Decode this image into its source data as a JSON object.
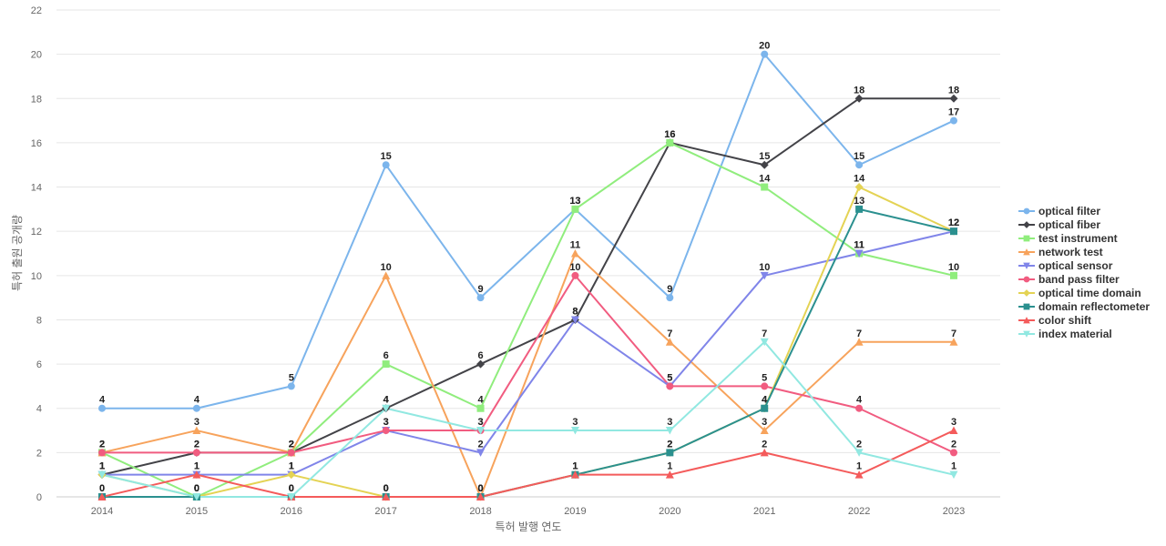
{
  "chart_data": {
    "type": "line",
    "title": "",
    "xlabel": "특허 발행 연도",
    "ylabel": "특허 출원 공개량",
    "x": [
      "2014",
      "2015",
      "2016",
      "2017",
      "2018",
      "2019",
      "2020",
      "2021",
      "2022",
      "2023"
    ],
    "ylim": [
      0,
      22
    ],
    "yticks": [
      0,
      2,
      4,
      6,
      8,
      10,
      12,
      14,
      16,
      18,
      20,
      22
    ],
    "grid": true,
    "legend_position": "right",
    "series": [
      {
        "name": "optical filter",
        "color": "#7cb5ec",
        "marker": "circle",
        "values": [
          4,
          4,
          5,
          15,
          9,
          13,
          9,
          20,
          15,
          17
        ]
      },
      {
        "name": "optical fiber",
        "color": "#434348",
        "marker": "diamond",
        "values": [
          1,
          2,
          2,
          4,
          6,
          8,
          16,
          15,
          18,
          18
        ]
      },
      {
        "name": "test instrument",
        "color": "#90ed7d",
        "marker": "square",
        "values": [
          2,
          0,
          2,
          6,
          4,
          13,
          16,
          14,
          11,
          10
        ]
      },
      {
        "name": "network test",
        "color": "#f7a35c",
        "marker": "triangle",
        "values": [
          2,
          3,
          2,
          10,
          0,
          11,
          7,
          3,
          7,
          7
        ]
      },
      {
        "name": "optical sensor",
        "color": "#8085e9",
        "marker": "triangle-down",
        "values": [
          1,
          1,
          1,
          3,
          2,
          8,
          5,
          10,
          11,
          12
        ]
      },
      {
        "name": "band pass filter",
        "color": "#f15c80",
        "marker": "circle",
        "values": [
          2,
          2,
          2,
          3,
          3,
          10,
          5,
          5,
          4,
          2
        ]
      },
      {
        "name": "optical time domain",
        "color": "#e4d354",
        "marker": "diamond",
        "values": [
          1,
          0,
          1,
          0,
          0,
          1,
          2,
          4,
          14,
          12
        ]
      },
      {
        "name": "domain reflectometer",
        "color": "#2b908f",
        "marker": "square",
        "values": [
          0,
          0,
          0,
          0,
          0,
          1,
          2,
          4,
          13,
          12
        ]
      },
      {
        "name": "color shift",
        "color": "#f45b5b",
        "marker": "triangle",
        "values": [
          0,
          1,
          0,
          0,
          0,
          1,
          1,
          2,
          1,
          3
        ]
      },
      {
        "name": "index material",
        "color": "#91e8e1",
        "marker": "triangle-down",
        "values": [
          1,
          0,
          0,
          4,
          3,
          3,
          3,
          7,
          2,
          1
        ]
      }
    ]
  }
}
